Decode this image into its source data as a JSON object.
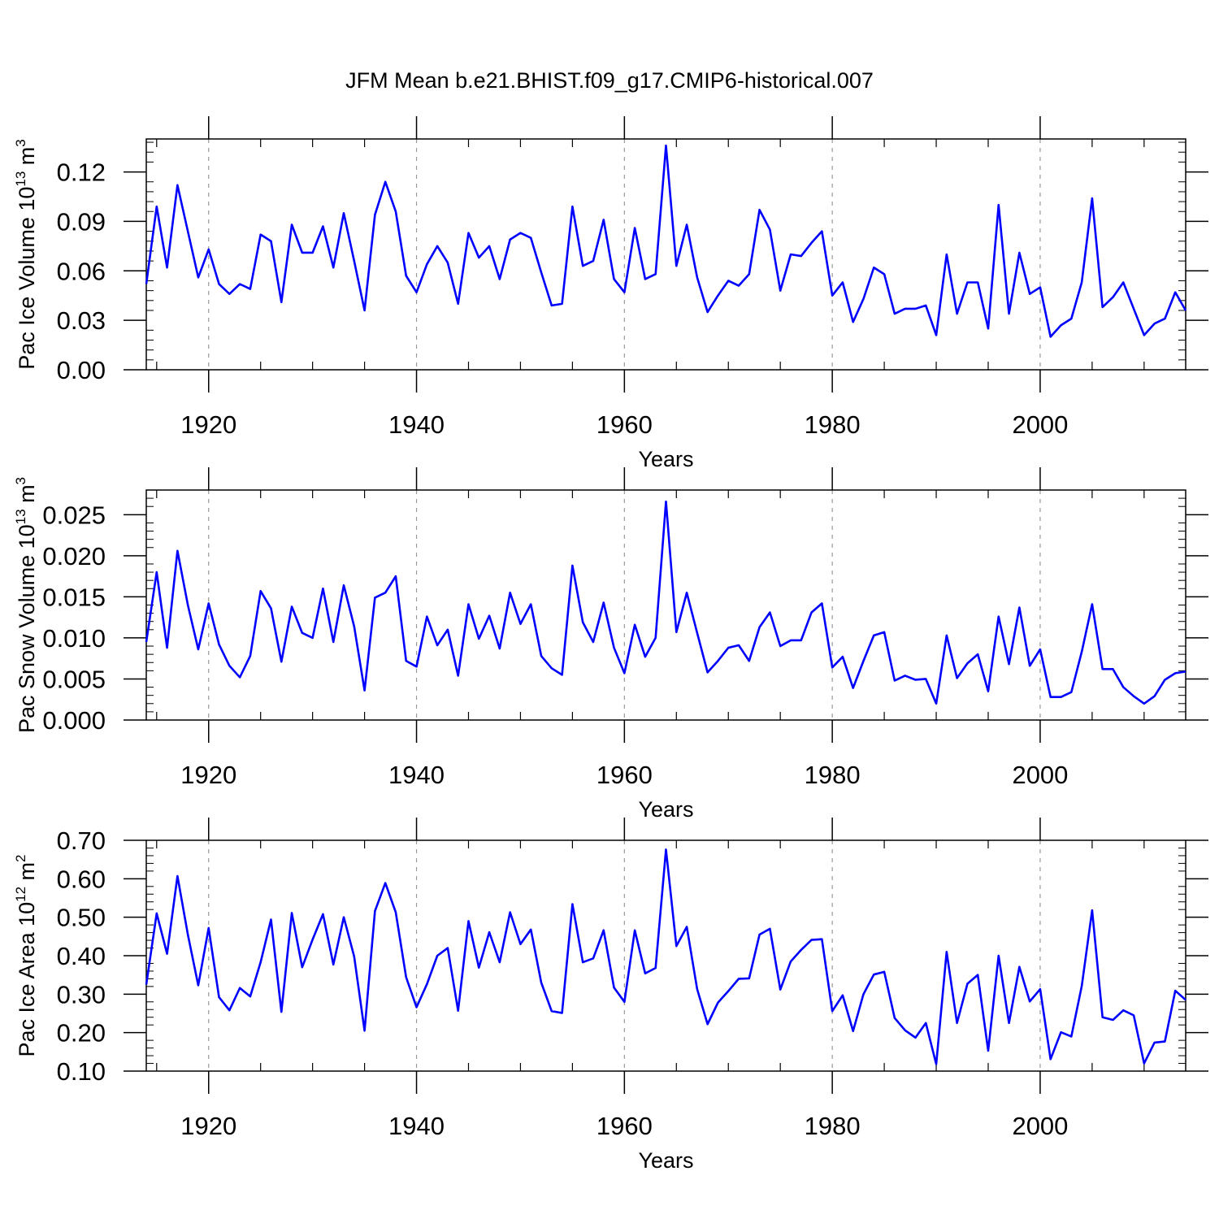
{
  "figure": {
    "title": "JFM Mean b.e21.BHIST.f09_g17.CMIP6-historical.007",
    "line_color": "#0000ff",
    "grid_color": "#999999"
  },
  "chart_data": [
    {
      "type": "line",
      "id": "ice-volume",
      "title": "",
      "ylabel": "Pac Ice Volume 10",
      "ylabel_exp": "13",
      "ylabel_unit": "m",
      "ylabel_unit_exp": "3",
      "xlabel": "Years",
      "xlim": [
        1914,
        2014
      ],
      "ylim": [
        0,
        0.14
      ],
      "yticks": [
        0,
        0.03,
        0.06,
        0.09,
        0.12
      ],
      "ytick_labels": [
        "0.00",
        "0.03",
        "0.06",
        "0.09",
        "0.12"
      ],
      "xticks": [
        1920,
        1940,
        1960,
        1980,
        2000
      ],
      "xtick_labels": [
        "1920",
        "1940",
        "1960",
        "1980",
        "2000"
      ],
      "x_start": 1914,
      "series": [
        {
          "name": "Pac Ice Volume",
          "values": [
            0.052,
            0.099,
            0.062,
            0.112,
            0.084,
            0.056,
            0.073,
            0.052,
            0.046,
            0.052,
            0.049,
            0.082,
            0.078,
            0.041,
            0.088,
            0.071,
            0.071,
            0.087,
            0.062,
            0.095,
            0.066,
            0.036,
            0.094,
            0.114,
            0.096,
            0.057,
            0.047,
            0.064,
            0.075,
            0.065,
            0.04,
            0.083,
            0.068,
            0.075,
            0.055,
            0.079,
            0.083,
            0.08,
            0.059,
            0.039,
            0.04,
            0.099,
            0.063,
            0.066,
            0.091,
            0.055,
            0.047,
            0.086,
            0.055,
            0.058,
            0.136,
            0.063,
            0.088,
            0.056,
            0.035,
            0.045,
            0.054,
            0.051,
            0.058,
            0.097,
            0.085,
            0.048,
            0.07,
            0.069,
            0.077,
            0.084,
            0.045,
            0.053,
            0.029,
            0.043,
            0.062,
            0.058,
            0.034,
            0.037,
            0.037,
            0.039,
            0.021,
            0.07,
            0.034,
            0.053,
            0.053,
            0.025,
            0.1,
            0.034,
            0.071,
            0.046,
            0.05,
            0.02,
            0.027,
            0.031,
            0.053,
            0.104,
            0.038,
            0.044,
            0.053,
            0.037,
            0.021,
            0.028,
            0.031,
            0.047,
            0.036
          ]
        }
      ]
    },
    {
      "type": "line",
      "id": "snow-volume",
      "title": "",
      "ylabel": "Pac Snow Volume 10",
      "ylabel_exp": "13",
      "ylabel_unit": "m",
      "ylabel_unit_exp": "3",
      "xlabel": "Years",
      "xlim": [
        1914,
        2014
      ],
      "ylim": [
        0,
        0.028
      ],
      "yticks": [
        0,
        0.005,
        0.01,
        0.015,
        0.02,
        0.025
      ],
      "ytick_labels": [
        "0.000",
        "0.005",
        "0.010",
        "0.015",
        "0.020",
        "0.025"
      ],
      "xticks": [
        1920,
        1940,
        1960,
        1980,
        2000
      ],
      "xtick_labels": [
        "1920",
        "1940",
        "1960",
        "1980",
        "2000"
      ],
      "x_start": 1914,
      "series": [
        {
          "name": "Pac Snow Volume",
          "values": [
            0.0095,
            0.018,
            0.0088,
            0.0206,
            0.014,
            0.0086,
            0.0142,
            0.0092,
            0.0066,
            0.0052,
            0.0078,
            0.0157,
            0.0136,
            0.0071,
            0.0138,
            0.0106,
            0.01,
            0.016,
            0.0095,
            0.0164,
            0.0114,
            0.0036,
            0.0149,
            0.0155,
            0.0175,
            0.0072,
            0.0065,
            0.0126,
            0.0091,
            0.011,
            0.0054,
            0.0141,
            0.0099,
            0.0127,
            0.0087,
            0.0155,
            0.0117,
            0.0141,
            0.0078,
            0.0063,
            0.0055,
            0.0188,
            0.0119,
            0.0095,
            0.0143,
            0.0088,
            0.0057,
            0.0116,
            0.0077,
            0.01,
            0.0266,
            0.0107,
            0.0155,
            0.0106,
            0.0058,
            0.0072,
            0.0088,
            0.0091,
            0.0072,
            0.0113,
            0.0131,
            0.009,
            0.0097,
            0.0097,
            0.0131,
            0.0142,
            0.0064,
            0.0077,
            0.0039,
            0.0072,
            0.0103,
            0.0107,
            0.0048,
            0.0054,
            0.0049,
            0.005,
            0.002,
            0.0103,
            0.0051,
            0.0069,
            0.008,
            0.0035,
            0.0126,
            0.0068,
            0.0137,
            0.0066,
            0.0086,
            0.0028,
            0.0028,
            0.0034,
            0.0083,
            0.0141,
            0.0062,
            0.0062,
            0.004,
            0.0029,
            0.002,
            0.0029,
            0.0049,
            0.0057,
            0.0059
          ]
        }
      ]
    },
    {
      "type": "line",
      "id": "ice-area",
      "title": "",
      "ylabel": "Pac Ice Area 10",
      "ylabel_exp": "12",
      "ylabel_unit": "m",
      "ylabel_unit_exp": "2",
      "xlabel": "Years",
      "xlim": [
        1914,
        2014
      ],
      "ylim": [
        0.1,
        0.7
      ],
      "yticks": [
        0.1,
        0.2,
        0.3,
        0.4,
        0.5,
        0.6,
        0.7
      ],
      "ytick_labels": [
        "0.10",
        "0.20",
        "0.30",
        "0.40",
        "0.50",
        "0.60",
        "0.70"
      ],
      "xticks": [
        1920,
        1940,
        1960,
        1980,
        2000
      ],
      "xtick_labels": [
        "1920",
        "1940",
        "1960",
        "1980",
        "2000"
      ],
      "x_start": 1914,
      "series": [
        {
          "name": "Pac Ice Area",
          "values": [
            0.325,
            0.51,
            0.405,
            0.607,
            0.455,
            0.323,
            0.472,
            0.292,
            0.258,
            0.316,
            0.294,
            0.383,
            0.494,
            0.254,
            0.511,
            0.37,
            0.442,
            0.508,
            0.377,
            0.5,
            0.398,
            0.205,
            0.516,
            0.589,
            0.513,
            0.344,
            0.266,
            0.326,
            0.4,
            0.42,
            0.257,
            0.49,
            0.369,
            0.461,
            0.383,
            0.513,
            0.43,
            0.468,
            0.33,
            0.256,
            0.251,
            0.534,
            0.383,
            0.393,
            0.466,
            0.317,
            0.28,
            0.466,
            0.354,
            0.368,
            0.676,
            0.425,
            0.475,
            0.313,
            0.222,
            0.278,
            0.308,
            0.34,
            0.341,
            0.455,
            0.47,
            0.312,
            0.385,
            0.415,
            0.441,
            0.443,
            0.256,
            0.297,
            0.204,
            0.3,
            0.351,
            0.358,
            0.238,
            0.206,
            0.187,
            0.225,
            0.118,
            0.41,
            0.225,
            0.327,
            0.35,
            0.153,
            0.4,
            0.225,
            0.371,
            0.281,
            0.313,
            0.131,
            0.201,
            0.19,
            0.321,
            0.518,
            0.24,
            0.233,
            0.258,
            0.245,
            0.12,
            0.174,
            0.177,
            0.309,
            0.285
          ]
        }
      ]
    }
  ]
}
